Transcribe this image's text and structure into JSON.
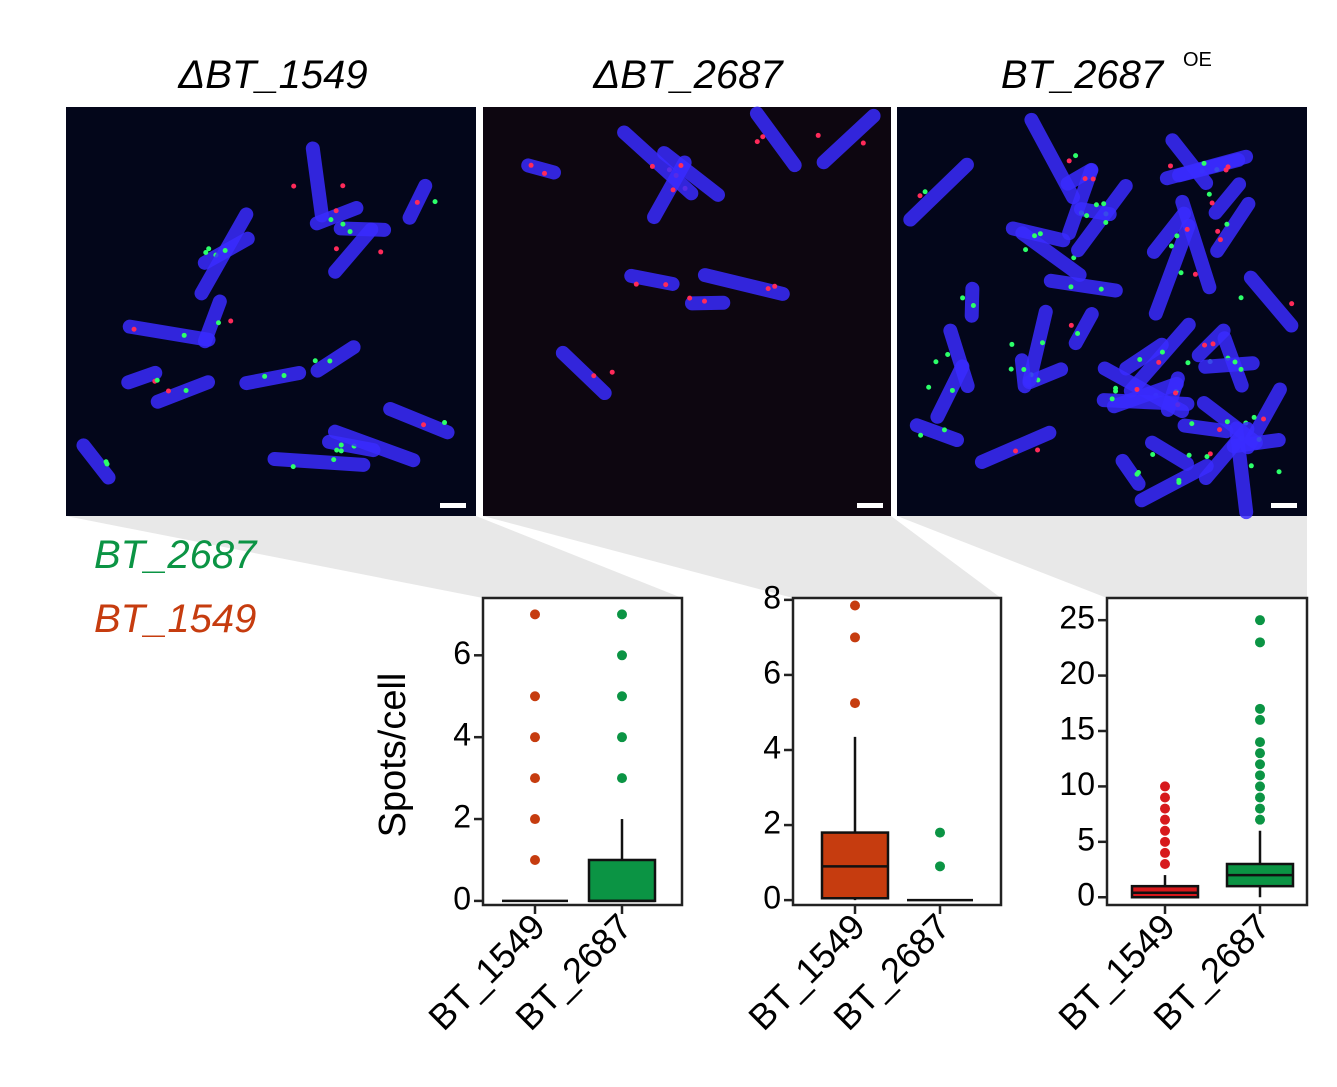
{
  "panels": [
    {
      "title": "ΔBT_1549"
    },
    {
      "title": "ΔBT_2687"
    },
    {
      "title": "BT_2687",
      "superscript": "OE"
    }
  ],
  "legend": [
    {
      "label": "BT_2687",
      "color": "#0b9444"
    },
    {
      "label": "BT_1549",
      "color": "#c63c0f"
    }
  ],
  "chart_data": [
    {
      "type": "box",
      "ylabel": "Spots/cell",
      "categories": [
        "BT_1549",
        "BT_2687"
      ],
      "ylim": [
        -0.1,
        7.4
      ],
      "yticks": [
        0,
        2,
        4,
        6
      ],
      "boxes": [
        {
          "min": 0,
          "q1": 0,
          "median": 0,
          "q3": 0,
          "max": 0,
          "outliers": [
            1,
            2,
            3,
            4,
            5,
            7
          ],
          "color": "#c63c0f"
        },
        {
          "min": 0,
          "q1": 0,
          "median": 0,
          "q3": 1,
          "max": 2,
          "outliers": [
            3,
            4,
            5,
            6,
            7
          ],
          "color": "#0b9444"
        }
      ]
    },
    {
      "type": "box",
      "categories": [
        "BT_1549",
        "BT_2687"
      ],
      "ylim": [
        -0.13,
        8.05
      ],
      "yticks": [
        0,
        2,
        4,
        6,
        8
      ],
      "boxes": [
        {
          "min": 0,
          "q1": 0.05,
          "median": 0.9,
          "q3": 1.8,
          "max": 4.35,
          "outliers": [
            5.25,
            7,
            7.85
          ],
          "color": "#c63c0f"
        },
        {
          "min": 0,
          "q1": 0,
          "median": 0,
          "q3": 0,
          "max": 0,
          "outliers": [
            0.9,
            1.8
          ],
          "color": "#0b9444"
        }
      ]
    },
    {
      "type": "box",
      "categories": [
        "BT_1549",
        "BT_2687"
      ],
      "ylim": [
        -0.7,
        27
      ],
      "yticks": [
        0,
        5,
        10,
        15,
        20,
        25
      ],
      "boxes": [
        {
          "min": 0,
          "q1": 0,
          "median": 0.4,
          "q3": 1,
          "max": 2,
          "outliers": [
            3,
            4,
            5,
            6,
            7,
            8,
            9,
            10
          ],
          "color": "#d7191c"
        },
        {
          "min": 0,
          "q1": 1,
          "median": 2,
          "q3": 3,
          "max": 6,
          "outliers": [
            7,
            8,
            9,
            10,
            11,
            12,
            13,
            14,
            16,
            17,
            23,
            25
          ],
          "color": "#0b9444"
        }
      ]
    }
  ]
}
